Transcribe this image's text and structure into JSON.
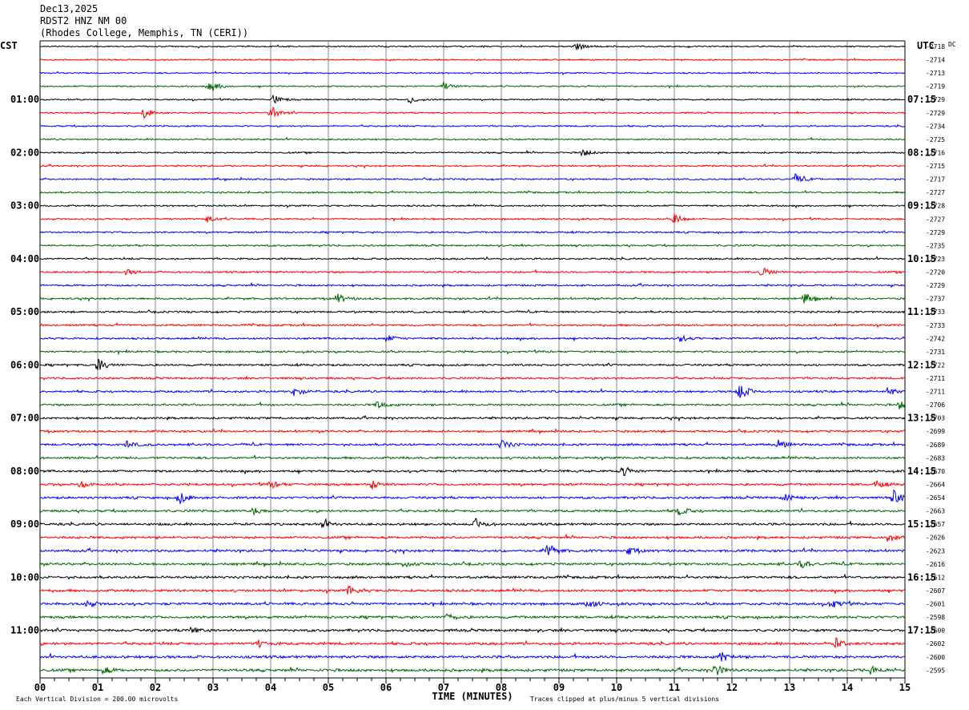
{
  "header": {
    "date": "Dec13,2025",
    "station": "RDST2 HNZ NM 00",
    "location": "(Rhodes College, Memphis, TN (CERI))"
  },
  "chart_data": {
    "type": "line",
    "title": "Dec13,2025 RDST2 HNZ NM 00 (Rhodes College, Memphis, TN (CERI))",
    "left_axis_label": "CST",
    "right_axis_label": "UTC",
    "dc_label": "DC",
    "xlabel": "TIME (MINUTES)",
    "x_ticks": [
      "00",
      "01",
      "02",
      "03",
      "04",
      "05",
      "06",
      "07",
      "08",
      "09",
      "10",
      "11",
      "12",
      "13",
      "14",
      "15"
    ],
    "xlim": [
      0,
      15
    ],
    "minutes_per_line": 15,
    "trace_colors": [
      "#000000",
      "#ff0000",
      "#0000ff",
      "#006600"
    ],
    "grid_color": "#8080a0",
    "cst_labels": [
      "01:00",
      "02:00",
      "03:00",
      "04:00",
      "05:00",
      "06:00",
      "07:00",
      "08:00",
      "09:00",
      "10:00",
      "11:00"
    ],
    "utc_labels": [
      "07:15",
      "08:15",
      "09:15",
      "10:15",
      "11:15",
      "12:15",
      "13:15",
      "14:15",
      "15:15",
      "16:15",
      "17:15"
    ],
    "hour_label_first_trace": 4,
    "dc_offsets": [
      -2718,
      -2714,
      -2713,
      -2719,
      -2729,
      -2729,
      -2734,
      -2725,
      -2716,
      -2715,
      -2717,
      -2727,
      -2728,
      -2727,
      -2729,
      -2735,
      -2723,
      -2720,
      -2729,
      -2737,
      -2733,
      -2733,
      -2742,
      -2731,
      -2722,
      -2711,
      -2711,
      -2706,
      -2703,
      -2699,
      -2689,
      -2683,
      -2670,
      -2664,
      -2654,
      -2663,
      -2657,
      -2626,
      -2623,
      -2616,
      -2612,
      -2607,
      -2601,
      -2598,
      -2600,
      -2602,
      -2600,
      -2595
    ],
    "events": [
      {
        "trace": 0,
        "minute": 9.3,
        "amp": 1.6
      },
      {
        "trace": 3,
        "minute": 2.95,
        "amp": 2.4
      },
      {
        "trace": 3,
        "minute": 7.0,
        "amp": 1.5
      },
      {
        "trace": 4,
        "minute": 4.05,
        "amp": 2.0
      },
      {
        "trace": 4,
        "minute": 6.4,
        "amp": 1.6
      },
      {
        "trace": 5,
        "minute": 1.8,
        "amp": 2.0
      },
      {
        "trace": 5,
        "minute": 4.0,
        "amp": 2.8
      },
      {
        "trace": 8,
        "minute": 9.4,
        "amp": 1.4
      },
      {
        "trace": 10,
        "minute": 13.1,
        "amp": 2.0
      },
      {
        "trace": 13,
        "minute": 11.0,
        "amp": 2.0
      },
      {
        "trace": 13,
        "minute": 2.9,
        "amp": 1.4
      },
      {
        "trace": 17,
        "minute": 12.5,
        "amp": 2.2
      },
      {
        "trace": 17,
        "minute": 1.5,
        "amp": 1.2
      },
      {
        "trace": 19,
        "minute": 5.15,
        "amp": 2.0
      },
      {
        "trace": 19,
        "minute": 13.25,
        "amp": 2.0
      },
      {
        "trace": 22,
        "minute": 6.0,
        "amp": 1.4
      },
      {
        "trace": 22,
        "minute": 11.1,
        "amp": 1.3
      },
      {
        "trace": 24,
        "minute": 1.0,
        "amp": 3.0
      },
      {
        "trace": 26,
        "minute": 12.1,
        "amp": 4.0
      },
      {
        "trace": 26,
        "minute": 4.4,
        "amp": 2.0
      },
      {
        "trace": 26,
        "minute": 14.7,
        "amp": 1.5
      },
      {
        "trace": 27,
        "minute": 5.85,
        "amp": 1.6
      },
      {
        "trace": 27,
        "minute": 14.9,
        "amp": 1.6
      },
      {
        "trace": 30,
        "minute": 8.0,
        "amp": 2.0
      },
      {
        "trace": 30,
        "minute": 12.8,
        "amp": 1.8
      },
      {
        "trace": 30,
        "minute": 1.5,
        "amp": 1.3
      },
      {
        "trace": 32,
        "minute": 10.1,
        "amp": 2.0
      },
      {
        "trace": 33,
        "minute": 0.7,
        "amp": 1.4
      },
      {
        "trace": 33,
        "minute": 4.0,
        "amp": 1.6
      },
      {
        "trace": 33,
        "minute": 5.75,
        "amp": 2.0
      },
      {
        "trace": 33,
        "minute": 14.5,
        "amp": 1.4
      },
      {
        "trace": 34,
        "minute": 2.4,
        "amp": 2.5
      },
      {
        "trace": 34,
        "minute": 14.8,
        "amp": 2.8
      },
      {
        "trace": 34,
        "minute": 12.9,
        "amp": 1.4
      },
      {
        "trace": 35,
        "minute": 11.05,
        "amp": 2.0
      },
      {
        "trace": 35,
        "minute": 3.7,
        "amp": 1.4
      },
      {
        "trace": 36,
        "minute": 7.55,
        "amp": 2.0
      },
      {
        "trace": 36,
        "minute": 4.9,
        "amp": 1.5
      },
      {
        "trace": 37,
        "minute": 14.7,
        "amp": 1.6
      },
      {
        "trace": 38,
        "minute": 8.8,
        "amp": 3.0
      },
      {
        "trace": 38,
        "minute": 10.2,
        "amp": 1.5
      },
      {
        "trace": 39,
        "minute": 6.3,
        "amp": 1.6
      },
      {
        "trace": 39,
        "minute": 13.2,
        "amp": 1.5
      },
      {
        "trace": 41,
        "minute": 5.35,
        "amp": 2.2
      },
      {
        "trace": 42,
        "minute": 9.5,
        "amp": 1.8
      },
      {
        "trace": 42,
        "minute": 13.7,
        "amp": 2.2
      },
      {
        "trace": 42,
        "minute": 0.8,
        "amp": 1.3
      },
      {
        "trace": 43,
        "minute": 7.05,
        "amp": 1.4
      },
      {
        "trace": 44,
        "minute": 2.6,
        "amp": 1.3
      },
      {
        "trace": 45,
        "minute": 13.8,
        "amp": 2.0
      },
      {
        "trace": 45,
        "minute": 3.8,
        "amp": 1.4
      },
      {
        "trace": 46,
        "minute": 11.8,
        "amp": 2.0
      },
      {
        "trace": 47,
        "minute": 11.7,
        "amp": 2.4
      },
      {
        "trace": 47,
        "minute": 14.4,
        "amp": 1.8
      },
      {
        "trace": 47,
        "minute": 1.1,
        "amp": 1.4
      }
    ],
    "footer_left": "Each Vertical Division =  200.00 microvolts",
    "footer_right": "Traces clipped at plus/minus 5 vertical divisions"
  }
}
